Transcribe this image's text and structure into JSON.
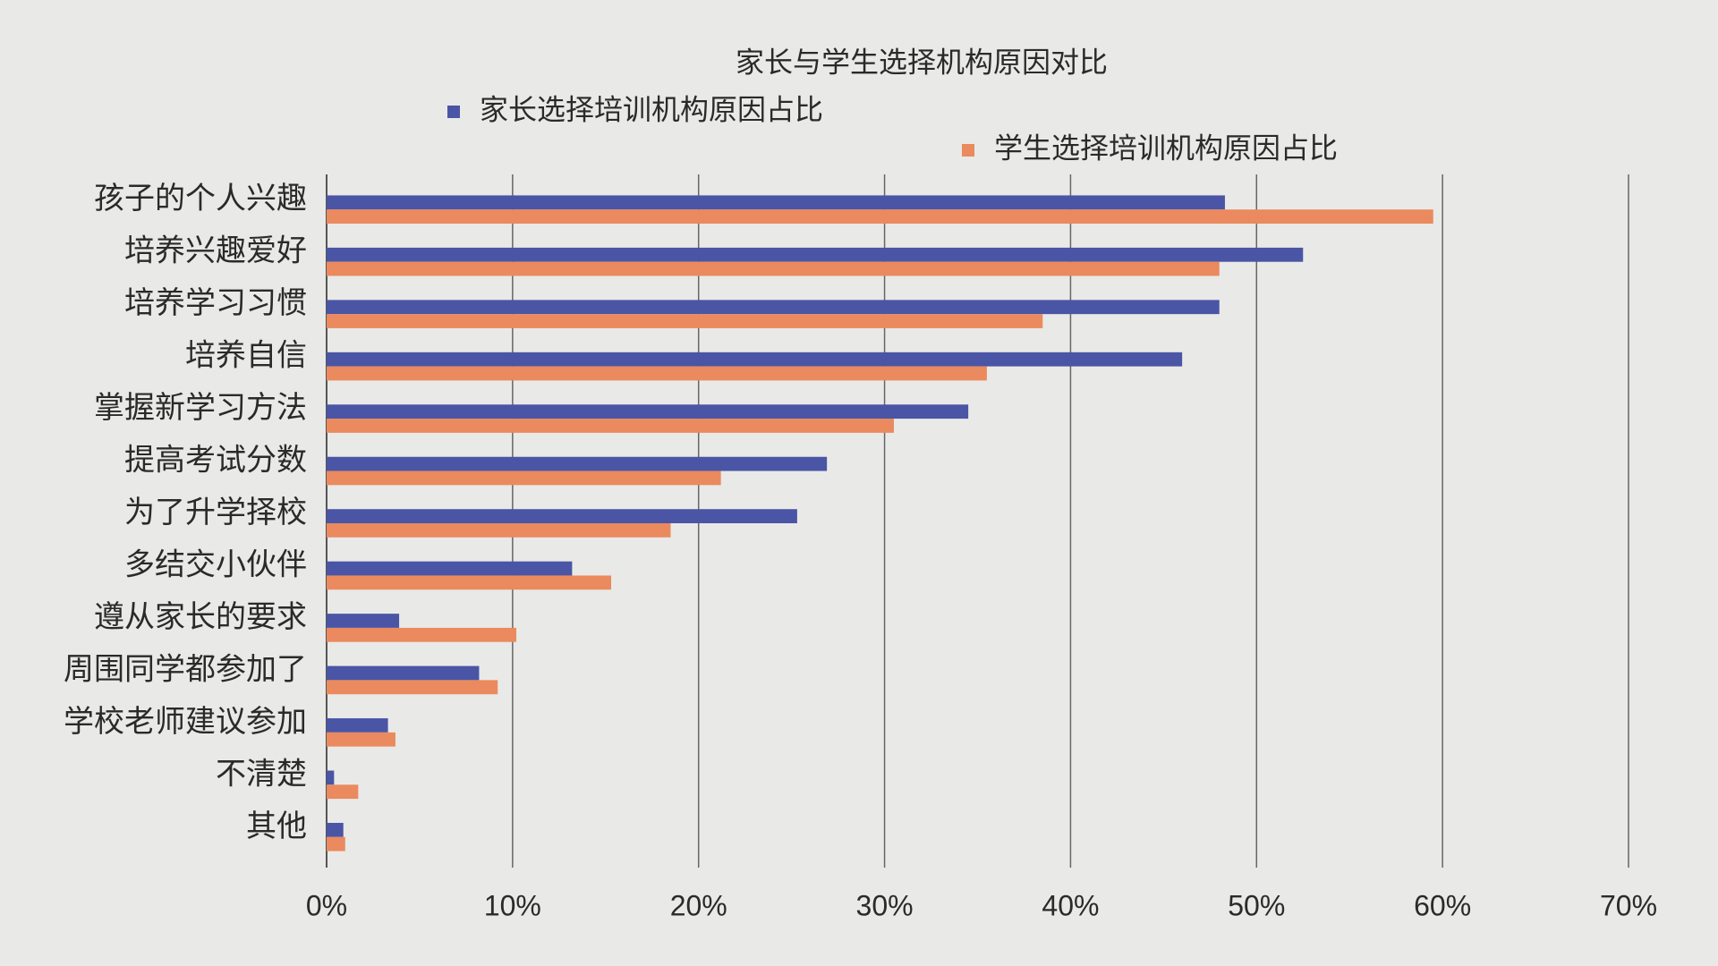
{
  "chart_data": {
    "type": "barh",
    "title": "家长与学生选择机构原因对比",
    "categories": [
      "孩子的个人兴趣",
      "培养兴趣爱好",
      "培养学习习惯",
      "培养自信",
      "掌握新学习方法",
      "提高考试分数",
      "为了升学择校",
      "多结交小伙伴",
      "遵从家长的要求",
      "周围同学都参加了",
      "学校老师建议参加",
      "不清楚",
      "其他"
    ],
    "series": [
      {
        "name": "家长选择培训机构原因占比",
        "color": "#4a55a5",
        "values": [
          48.3,
          52.5,
          48,
          46,
          34.5,
          26.9,
          25.3,
          13.2,
          3.9,
          8.2,
          3.3,
          0.4,
          0.9
        ]
      },
      {
        "name": "学生选择培训机构原因占比",
        "color": "#ea8a5e",
        "values": [
          59.5,
          48,
          38.5,
          35.5,
          30.5,
          21.2,
          18.5,
          15.3,
          10.2,
          9.2,
          3.7,
          1.7,
          1
        ]
      }
    ],
    "xlim": [
      0,
      70
    ],
    "xticks": [
      {
        "value": 0,
        "label": "0%"
      },
      {
        "value": 10,
        "label": "10%"
      },
      {
        "value": 20,
        "label": "20%"
      },
      {
        "value": 30,
        "label": "30%"
      },
      {
        "value": 40,
        "label": "40%"
      },
      {
        "value": 50,
        "label": "50%"
      },
      {
        "value": 60,
        "label": "60%"
      },
      {
        "value": 70,
        "label": "70%"
      }
    ],
    "grid": true
  }
}
